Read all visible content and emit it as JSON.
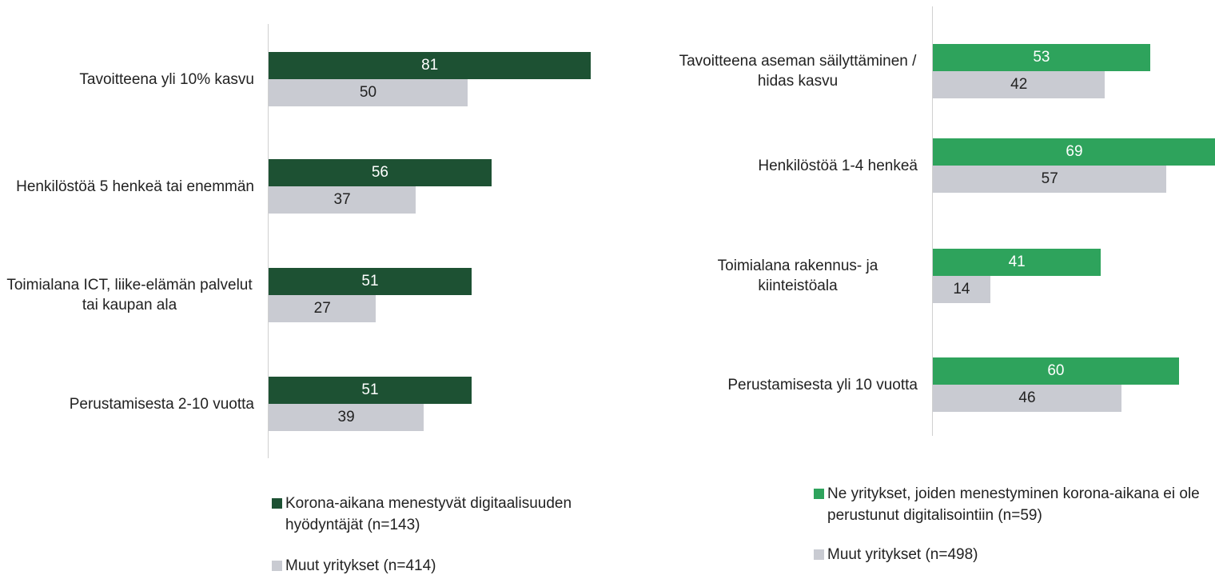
{
  "chart_data": [
    {
      "type": "bar",
      "categories": [
        "Tavoitteena yli 10% kasvu",
        "Henkilöstöä 5 henkeä tai enemmän",
        "Toimialana ICT, liike-elämän palvelut tai kaupan ala",
        "Perustamisesta 2-10 vuotta"
      ],
      "series": [
        {
          "name": "Korona-aikana menestyvät digitaalisuuden hyödyntäjät (n=143)",
          "color": "#1d5133",
          "values": [
            81,
            56,
            51,
            51
          ]
        },
        {
          "name": "Muut yritykset (n=414)",
          "color": "#c9cbd2",
          "values": [
            50,
            37,
            27,
            39
          ]
        }
      ],
      "xlim": [
        0,
        100
      ]
    },
    {
      "type": "bar",
      "categories": [
        "Tavoitteena aseman säilyttäminen / hidas kasvu",
        "Henkilöstöä 1-4 henkeä",
        "Toimialana rakennus- ja kiinteistöala",
        "Perustamisesta yli 10 vuotta"
      ],
      "series": [
        {
          "name": "Ne yritykset, joiden menestyminen korona-aikana ei ole perustunut digitalisointiin (n=59)",
          "color": "#2ea35c",
          "values": [
            53,
            69,
            41,
            60
          ]
        },
        {
          "name": "Muut yritykset (n=498)",
          "color": "#c9cbd2",
          "values": [
            42,
            57,
            14,
            46
          ]
        }
      ],
      "xlim": [
        0,
        100
      ]
    }
  ]
}
